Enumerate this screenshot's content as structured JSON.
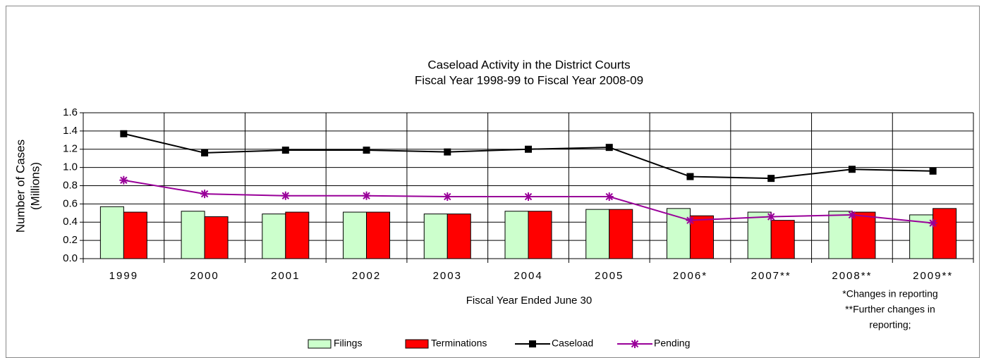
{
  "chart_data": {
    "type": "combo",
    "title": "Caseload Activity in the District Courts",
    "subtitle": "Fiscal Year 1998-99 to Fiscal Year 2008-09",
    "y_label": [
      "Number of Cases",
      "(Millions)"
    ],
    "x_label": "Fiscal Year Ended June 30",
    "categories": [
      "1999",
      "2000",
      "2001",
      "2002",
      "2003",
      "2004",
      "2005",
      "2006*",
      "2007**",
      "2008**",
      "2009**"
    ],
    "series": [
      {
        "name": "Filings",
        "type": "bar",
        "color": "#ccffcc",
        "values": [
          0.57,
          0.52,
          0.49,
          0.51,
          0.49,
          0.52,
          0.54,
          0.55,
          0.51,
          0.52,
          0.48
        ]
      },
      {
        "name": "Terminations",
        "type": "bar",
        "color": "#ff0000",
        "values": [
          0.51,
          0.46,
          0.51,
          0.51,
          0.49,
          0.52,
          0.54,
          0.47,
          0.42,
          0.51,
          0.55
        ]
      },
      {
        "name": "Caseload",
        "type": "line",
        "marker": "square",
        "color": "#000000",
        "values": [
          1.37,
          1.16,
          1.19,
          1.19,
          1.17,
          1.2,
          1.22,
          0.9,
          0.88,
          0.98,
          0.96
        ]
      },
      {
        "name": "Pending",
        "type": "line",
        "marker": "asterisk",
        "color": "#990099",
        "values": [
          0.86,
          0.71,
          0.69,
          0.69,
          0.68,
          0.68,
          0.68,
          0.42,
          0.46,
          0.48,
          0.39
        ]
      }
    ],
    "ylim": [
      0,
      1.6
    ],
    "yticks": [
      {
        "value": 0,
        "label": "0.0"
      },
      0.2,
      0.4,
      0.6,
      0.8,
      {
        "value": 1,
        "label": "1.0"
      },
      1.2,
      1.4,
      1.6
    ],
    "grid": true,
    "legend": "bottom",
    "annotations": [
      "*Changes in reporting",
      "**Further changes in",
      "reporting;"
    ]
  }
}
